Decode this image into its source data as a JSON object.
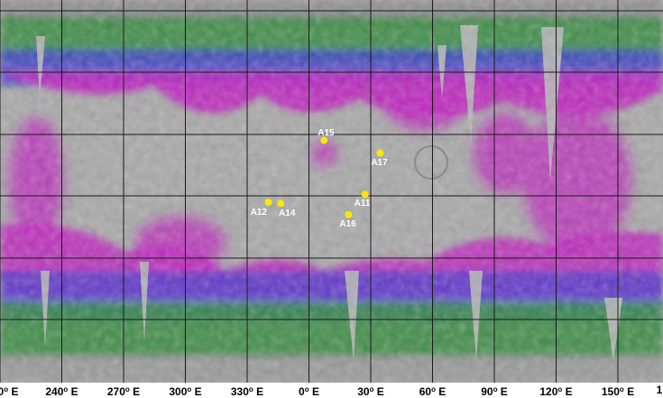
{
  "map": {
    "lon_ticks": [
      {
        "value": "0",
        "unit": "E"
      },
      {
        "value": "240",
        "unit": "E"
      },
      {
        "value": "270",
        "unit": "E"
      },
      {
        "value": "300",
        "unit": "E"
      },
      {
        "value": "330",
        "unit": "E"
      },
      {
        "value": "0",
        "unit": "E"
      },
      {
        "value": "30",
        "unit": "E"
      },
      {
        "value": "60",
        "unit": "E"
      },
      {
        "value": "90",
        "unit": "E"
      },
      {
        "value": "120",
        "unit": "E"
      },
      {
        "value": "150",
        "unit": "E"
      },
      {
        "value": "1",
        "unit": ""
      }
    ],
    "degree_symbol": "o",
    "sites": [
      {
        "label": "A15",
        "lon": 3.6,
        "lat": 26.1
      },
      {
        "label": "A17",
        "lon": 30.8,
        "lat": 20.2
      },
      {
        "label": "A11",
        "lon": 23.5,
        "lat": 0.7
      },
      {
        "label": "A12",
        "lon": -23.4,
        "lat": -3.0
      },
      {
        "label": "A14",
        "lon": -17.5,
        "lat": -3.6
      },
      {
        "label": "A16",
        "lon": 15.5,
        "lat": -8.9
      }
    ],
    "colors": {
      "terrain": "#a9a9a9",
      "magenta": "#c020c0",
      "blue": "#3a3ad0",
      "green": "#2f8a3a",
      "site_marker": "#ffe600",
      "grid": "#1a1a1a"
    }
  }
}
